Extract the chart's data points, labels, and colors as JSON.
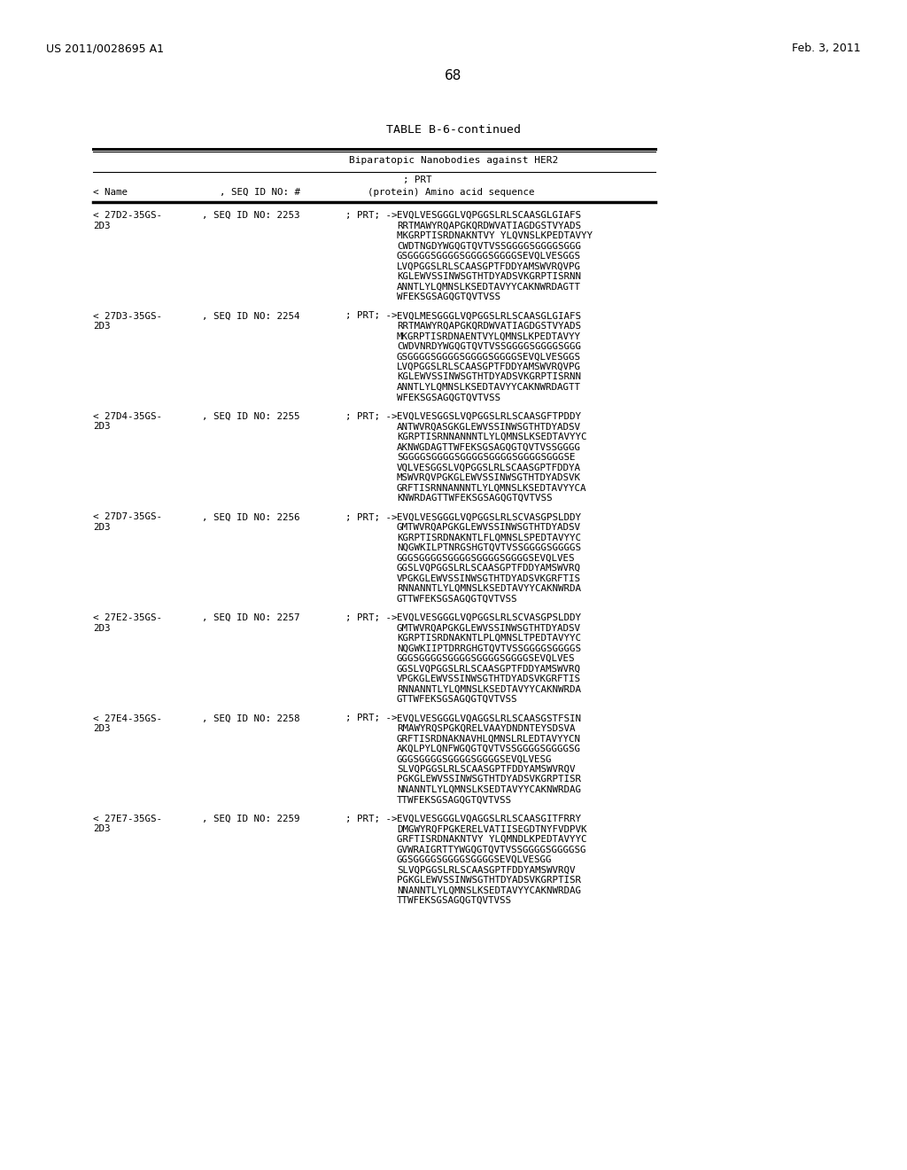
{
  "header_left": "US 2011/0028695 A1",
  "header_right": "Feb. 3, 2011",
  "page_number": "68",
  "table_title": "TABLE B-6-continued",
  "table_subtitle": "Biparatopic Nanobodies against HER2",
  "entries": [
    {
      "name": "< 27D2-35GS-",
      "name2": "2D3",
      "seq_id": ", SEQ ID NO: 2253",
      "prt": "; PRT; ->",
      "sequence": [
        "EVQLVESGGGLVQPGGSLRLSCAASGLGIAFS",
        "RRTMAWYRQAPGKQRDWVATIAGDGSTVYADS",
        "MKGRPTISRDNAKNTVY YLQVNSLKPEDTAVYY",
        "CWDTNGDYWGQGTQVTVSSGGGGSGGGGSGGG",
        "GSGGGGSGGGGSGGGGSGGGGSEVQLVESGGS",
        "LVQPGGSLRLSCAASGPTFDDYAMSWVRQVPG",
        "KGLEWVSSINWSGTHTDYADSVKGRPTISRNN",
        "ANNTLYLQMNSLKSEDTAVYYCAKNWRDAGTT",
        "WFEKSGSAGQGTQVTVSS"
      ]
    },
    {
      "name": "< 27D3-35GS-",
      "name2": "2D3",
      "seq_id": ", SEQ ID NO: 2254",
      "prt": "; PRT; ->",
      "sequence": [
        "EVQLMESGGGLVQPGGSLRLSCAASGLGIAFS",
        "RRTMAWYRQAPGKQRDWVATIAGDGSTVYADS",
        "MKGRPTISRDNAENTVYLQMNSLKPEDTAVYY",
        "CWDVNRDYWGQGTQVTVSSGGGGSGGGGSGGG",
        "GSGGGGSGGGGSGGGGSGGGGSEVQLVESGGS",
        "LVQPGGSLRLSCAASGPTFDDYAMSWVRQVPG",
        "KGLEWVSSINWSGTHTDYADSVKGRPTISRNN",
        "ANNTLYLQMNSLKSEDTAVYYCAKNWRDAGTT",
        "WFEKSGSAGQGTQVTVSS"
      ]
    },
    {
      "name": "< 27D4-35GS-",
      "name2": "2D3",
      "seq_id": ", SEQ ID NO: 2255",
      "prt": "; PRT; ->",
      "sequence": [
        "EVQLVESGGSLVQPGGSLRLSCAASGFTPDDY",
        "ANTWVRQASGKGLEWVSSINWSGTHTDYADSV",
        "KGRPTISRNNANNNTLYLQMNSLKSEDTAVYYC",
        "AKNWGDAGTTWFEKSGSAGQGTQVTVSSGGGG",
        "SGGGGSGGGGSGGGGSGGGGSGGGGSGGGSE",
        "VQLVESGGSLVQPGGSLRLSCAASGPTFDDYA",
        "MSWVRQVPGKGLEWVSSINWSGTHTDYADSVK",
        "GRFTISRNNANNNTLYLQMNSLKSEDTAVYYCA",
        "KNWRDAGTTWFEKSGSAGQGTQVTVSS"
      ]
    },
    {
      "name": "< 27D7-35GS-",
      "name2": "2D3",
      "seq_id": ", SEQ ID NO: 2256",
      "prt": "; PRT; ->",
      "sequence": [
        "EVQLVESGGGLVQPGGSLRLSCVASGPSLDDY",
        "GMTWVRQAPGKGLEWVSSINWSGTHTDYADSV",
        "KGRPTISRDNAKNTLFLQMNSLSPEDTAVYYC",
        "NQGWKILPTNRGSHGTQVTVSSGGGGSGGGGS",
        "GGGSGGGGSGGGGSGGGGSGGGGSEVQLVES",
        "GGSLVQPGGSLRLSCAASGPTFDDYAMSWVRQ",
        "VPGKGLEWVSSINWSGTHTDYADSVKGRFTIS",
        "RNNANNTLYLQMNSLKSEDTAVYYCAKNWRDA",
        "GTTWFEKSGSAGQGTQVTVSS"
      ]
    },
    {
      "name": "< 27E2-35GS-",
      "name2": "2D3",
      "seq_id": ", SEQ ID NO: 2257",
      "prt": "; PRT; ->",
      "sequence": [
        "EVQLVESGGGLVQPGGSLRLSCVASGPSLDDY",
        "GMTWVRQAPGKGLEWVSSINWSGTHTDYADSV",
        "KGRPTISRDNAKNTLPLQMNSLTPEDTAVYYC",
        "NQGWKIIPTDRRGHGTQVTVSSGGGGSGGGGS",
        "GGGSGGGGSGGGGSGGGGSGGGGSEVQLVES",
        "GGSLVQPGGSLRLSCAASGPTFDDYAMSWVRQ",
        "VPGKGLEWVSSINWSGTHTDYADSVKGRFTIS",
        "RNNANNTLYLQMNSLKSEDTAVYYCAKNWRDA",
        "GTTWFEKSGSAGQGTQVTVSS"
      ]
    },
    {
      "name": "< 27E4-35GS-",
      "name2": "2D3",
      "seq_id": ", SEQ ID NO: 2258",
      "prt": "; PRT; ->",
      "sequence": [
        "EVQLVESGGGLVQAGGSLRLSCAASGSTFSIN",
        "RMAWYRQSPGKQRELVAAYDNDNTEYSDSVА",
        "GRFTISRDNAKNAVHLQMNSLRLEDTAVYYCN",
        "AKQLPYLQNFWGQGTQVTVSSGGGGSGGGGSG",
        "GGGSGGGGSGGGGSGGGGSEVQLVESG",
        "SLVQPGGSLRLSCAASGPTFDDYAMSWVRQV",
        "PGKGLEWVSSINWSGTHTDYADSVKGRPTISR",
        "NNANNTLYLQMNSLKSEDTAVYYCAKNWRDAG",
        "TTWFEKSGSAGQGTQVTVSS"
      ]
    },
    {
      "name": "< 27E7-35GS-",
      "name2": "2D3",
      "seq_id": ", SEQ ID NO: 2259",
      "prt": "; PRT; ->",
      "sequence": [
        "EVQLVESGGGLVQAGGSLRLSCAASGITFRRY",
        "DMGWYRQFPGKERELVATIISEGDTNYFVDPVK",
        "GRFTISRDNAKNTVY YLQMNDLKPEDTAVYYC",
        "GVWRAIGRTTYWGQGTQVTVSSGGGGSGGGGSG",
        "GGSGGGGSGGGGSGGGGSEVQLVESGG",
        "SLVQPGGSLRLSCAASGPTFDDYAMSWVRQV",
        "PGKGLEWVSSINWSGTHTDYADSVKGRPTISR",
        "NNANNTLYLQMNSLKSEDTAVYYCAKNWRDAG",
        "TTWFEKSGSAGQGTQVTVSS"
      ]
    }
  ]
}
